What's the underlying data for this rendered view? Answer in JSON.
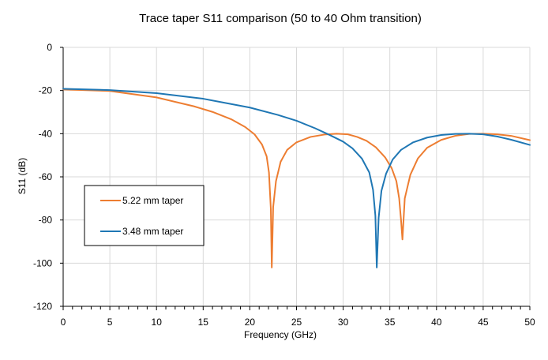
{
  "chart_data": {
    "type": "line",
    "title": "Trace taper S11 comparison (50 to 40 Ohm transition)",
    "xlabel": "Frequency (GHz)",
    "ylabel": "S11 (dB)",
    "xlim": [
      0,
      50
    ],
    "ylim": [
      -120,
      0
    ],
    "xticks": [
      0,
      5,
      10,
      15,
      20,
      25,
      30,
      35,
      40,
      45,
      50
    ],
    "yticks": [
      0,
      -20,
      -40,
      -60,
      -80,
      -100,
      -120
    ],
    "grid": true,
    "legend_position": "left-middle",
    "series": [
      {
        "name": "5.22 mm taper",
        "color": "#ED7D31",
        "x": [
          0,
          5,
          10,
          14,
          16,
          18,
          19.5,
          20.5,
          21.3,
          21.8,
          22.05,
          22.25,
          22.35,
          22.5,
          22.8,
          23.3,
          24,
          25,
          26.5,
          28,
          29.3,
          30.5,
          31.5,
          32.5,
          33.5,
          34.5,
          35.2,
          35.7,
          36.0,
          36.2,
          36.35,
          36.6,
          37.2,
          38,
          39,
          40.5,
          42,
          43.5,
          45,
          46.5,
          48,
          50
        ],
        "y": [
          -19.5,
          -20.2,
          -23.2,
          -27.3,
          -29.9,
          -33.3,
          -36.9,
          -40.3,
          -45.0,
          -50.5,
          -58.0,
          -75.0,
          -102.0,
          -74.0,
          -62.0,
          -53.0,
          -47.5,
          -44.0,
          -41.5,
          -40.4,
          -40.0,
          -40.3,
          -41.5,
          -43.3,
          -46.3,
          -51.0,
          -56.0,
          -62.0,
          -70.0,
          -80.0,
          -89.0,
          -70.0,
          -59.0,
          -51.5,
          -46.5,
          -42.9,
          -41.0,
          -40.1,
          -40.0,
          -40.3,
          -41.0,
          -43.0
        ]
      },
      {
        "name": "3.48 mm taper",
        "color": "#1F77B4",
        "x": [
          0,
          5,
          10,
          15,
          20,
          23,
          25,
          27,
          28.5,
          30,
          31,
          32,
          32.8,
          33.2,
          33.45,
          33.6,
          33.8,
          34.1,
          34.6,
          35.3,
          36.2,
          37.5,
          39,
          40.5,
          42,
          43.5,
          45,
          46.5,
          48,
          50
        ],
        "y": [
          -19.2,
          -19.8,
          -21.2,
          -23.8,
          -27.9,
          -31.3,
          -34.0,
          -37.5,
          -40.5,
          -43.7,
          -46.8,
          -51.5,
          -58.0,
          -66.0,
          -78.0,
          -102.0,
          -79.0,
          -66.5,
          -58.5,
          -52.0,
          -47.5,
          -44.0,
          -41.8,
          -40.6,
          -40.1,
          -40.0,
          -40.3,
          -41.3,
          -42.8,
          -45.2
        ]
      }
    ]
  }
}
